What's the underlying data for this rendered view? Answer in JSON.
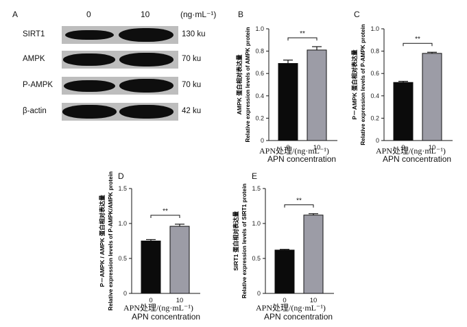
{
  "panels": {
    "A": "A",
    "B": "B",
    "C": "C",
    "D": "D",
    "E": "E"
  },
  "blot": {
    "lane_labels": [
      "0",
      "10"
    ],
    "unit": "(ng·mL⁻¹)",
    "rows": [
      {
        "protein": "SIRT1",
        "size": "130 ku",
        "band_intensity": [
          0.55,
          1.0
        ]
      },
      {
        "protein": "AMPK",
        "size": "70 ku",
        "band_intensity": [
          0.8,
          0.95
        ]
      },
      {
        "protein": "P-AMPK",
        "size": "70 ku",
        "band_intensity": [
          0.75,
          0.95
        ]
      },
      {
        "protein": "β-actin",
        "size": "42 ku",
        "band_intensity": [
          0.95,
          0.95
        ]
      }
    ]
  },
  "xaxis_cn": "APN处理/(ng·mL⁻¹)",
  "xaxis_en": "APN concentration",
  "chart_data": [
    {
      "panel": "B",
      "type": "bar",
      "categories": [
        "0",
        "10"
      ],
      "values": [
        0.69,
        0.81
      ],
      "errors": [
        0.03,
        0.03
      ],
      "ylim": [
        0,
        1.0
      ],
      "yticks": [
        "0",
        "0.2",
        "0.4",
        "0.6",
        "0.8",
        "1.0"
      ],
      "ylabel_cn": "AMPK 蛋白相对表达量",
      "ylabel_en": "Relative expression levels of AMPK protein",
      "significance": "**",
      "colors": [
        "#0b0b0b",
        "#9c9ca6"
      ]
    },
    {
      "panel": "C",
      "type": "bar",
      "categories": [
        "0",
        "10"
      ],
      "values": [
        0.52,
        0.78
      ],
      "errors": [
        0.01,
        0.01
      ],
      "ylim": [
        0,
        1.0
      ],
      "yticks": [
        "0",
        "0.2",
        "0.4",
        "0.6",
        "0.8",
        "1.0"
      ],
      "ylabel_cn": "P－AMPK 蛋白相对表达量",
      "ylabel_en": "Relative expression levels of P-AMPK protein",
      "significance": "**",
      "colors": [
        "#0b0b0b",
        "#9c9ca6"
      ]
    },
    {
      "panel": "D",
      "type": "bar",
      "categories": [
        "0",
        "10"
      ],
      "values": [
        0.75,
        0.96
      ],
      "errors": [
        0.02,
        0.03
      ],
      "ylim": [
        0,
        1.5
      ],
      "yticks": [
        "0",
        "0.5",
        "1.0",
        "1.5"
      ],
      "ylabel_cn": "P－AMPK / AMPK 蛋白相对表达量",
      "ylabel_en": "Relative expression levels of P-AMPK/AMPK protein",
      "significance": "**",
      "colors": [
        "#0b0b0b",
        "#9c9ca6"
      ]
    },
    {
      "panel": "E",
      "type": "bar",
      "categories": [
        "0",
        "10"
      ],
      "values": [
        0.62,
        1.12
      ],
      "errors": [
        0.01,
        0.02
      ],
      "ylim": [
        0,
        1.5
      ],
      "yticks": [
        "0",
        "0.5",
        "1.0",
        "1.5"
      ],
      "ylabel_cn": "SIRT1 蛋白相对表达量",
      "ylabel_en": "Relative expression levels of SIRT1 protein",
      "significance": "**",
      "colors": [
        "#0b0b0b",
        "#9c9ca6"
      ]
    }
  ]
}
